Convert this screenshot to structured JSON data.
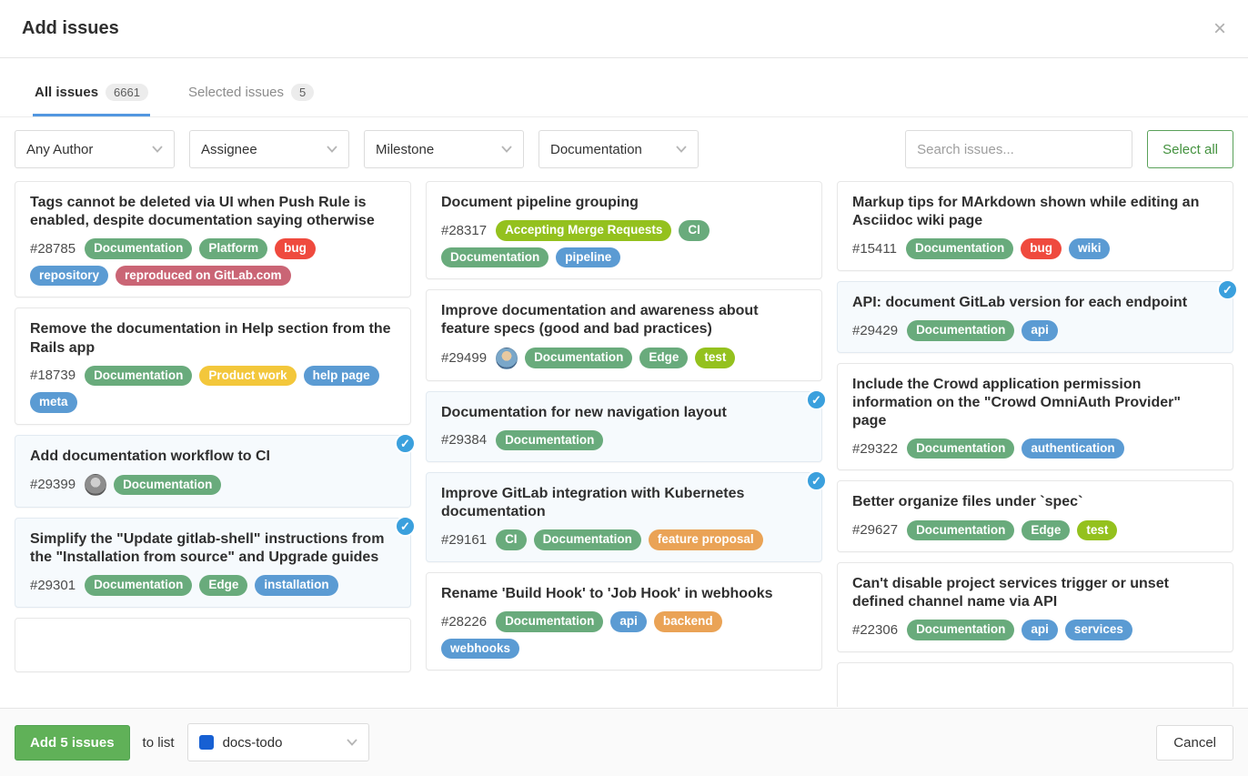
{
  "modal": {
    "title": "Add issues",
    "close_icon": "×"
  },
  "tabs": [
    {
      "label": "All issues",
      "count": "6661",
      "active": true
    },
    {
      "label": "Selected issues",
      "count": "5",
      "active": false
    }
  ],
  "filters": {
    "author": "Any Author",
    "assignee": "Assignee",
    "milestone": "Milestone",
    "label": "Documentation",
    "search_placeholder": "Search issues...",
    "select_all_label": "Select all"
  },
  "label_colors": {
    "green": "#69ab7c",
    "red": "#ef4a3e",
    "blue": "#5b9bd3",
    "rose": "#ca6575",
    "yellow": "#f3c73b",
    "lime": "#94c11e",
    "orange": "#eaa356"
  },
  "columns": [
    [
      {
        "title": "Tags cannot be deleted via UI when Push Rule is enabled, despite documentation saying otherwise",
        "id": "#28785",
        "selected": false,
        "labels": [
          {
            "text": "Documentation",
            "color": "green"
          },
          {
            "text": "Platform",
            "color": "green"
          },
          {
            "text": "bug",
            "color": "red"
          },
          {
            "text": "repository",
            "color": "blue"
          },
          {
            "text": "reproduced on GitLab.com",
            "color": "rose"
          }
        ]
      },
      {
        "title": "Remove the documentation in Help section from the Rails app",
        "id": "#18739",
        "selected": false,
        "labels": [
          {
            "text": "Documentation",
            "color": "green"
          },
          {
            "text": "Product work",
            "color": "yellow"
          },
          {
            "text": "help page",
            "color": "blue"
          },
          {
            "text": "meta",
            "color": "blue"
          }
        ]
      },
      {
        "title": "Add documentation workflow to CI",
        "id": "#29399",
        "selected": true,
        "avatar": "gray-photo",
        "labels": [
          {
            "text": "Documentation",
            "color": "green"
          }
        ]
      },
      {
        "title": "Simplify the \"Update gitlab-shell\" instructions from the \"Installation from source\" and Upgrade guides",
        "id": "#29301",
        "selected": true,
        "labels": [
          {
            "text": "Documentation",
            "color": "green"
          },
          {
            "text": "Edge",
            "color": "green"
          },
          {
            "text": "installation",
            "color": "blue"
          }
        ]
      },
      {
        "partial": true
      }
    ],
    [
      {
        "title": "Document pipeline grouping",
        "id": "#28317",
        "selected": false,
        "labels": [
          {
            "text": "Accepting Merge Requests",
            "color": "lime"
          },
          {
            "text": "CI",
            "color": "green"
          },
          {
            "text": "Documentation",
            "color": "green"
          },
          {
            "text": "pipeline",
            "color": "blue"
          }
        ]
      },
      {
        "title": "Improve documentation and awareness about feature specs (good and bad practices)",
        "id": "#29499",
        "selected": false,
        "avatar": "color-photo",
        "labels": [
          {
            "text": "Documentation",
            "color": "green"
          },
          {
            "text": "Edge",
            "color": "green"
          },
          {
            "text": "test",
            "color": "lime"
          }
        ]
      },
      {
        "title": "Documentation for new navigation layout",
        "id": "#29384",
        "selected": true,
        "labels": [
          {
            "text": "Documentation",
            "color": "green"
          }
        ]
      },
      {
        "title": "Improve GitLab integration with Kubernetes documentation",
        "id": "#29161",
        "selected": true,
        "labels": [
          {
            "text": "CI",
            "color": "green"
          },
          {
            "text": "Documentation",
            "color": "green"
          },
          {
            "text": "feature proposal",
            "color": "orange"
          }
        ]
      },
      {
        "title": "Rename 'Build Hook' to 'Job Hook' in webhooks",
        "id": "#28226",
        "selected": false,
        "labels": [
          {
            "text": "Documentation",
            "color": "green"
          },
          {
            "text": "api",
            "color": "blue"
          },
          {
            "text": "backend",
            "color": "orange"
          },
          {
            "text": "webhooks",
            "color": "blue"
          }
        ]
      }
    ],
    [
      {
        "title": "Markup tips for MArkdown shown while editing an Asciidoc wiki page",
        "id": "#15411",
        "selected": false,
        "labels": [
          {
            "text": "Documentation",
            "color": "green"
          },
          {
            "text": "bug",
            "color": "red"
          },
          {
            "text": "wiki",
            "color": "blue"
          }
        ]
      },
      {
        "title": "API: document GitLab version for each endpoint",
        "id": "#29429",
        "selected": true,
        "labels": [
          {
            "text": "Documentation",
            "color": "green"
          },
          {
            "text": "api",
            "color": "blue"
          }
        ]
      },
      {
        "title": "Include the Crowd application permission information on the \"Crowd OmniAuth Provider\" page",
        "id": "#29322",
        "selected": false,
        "labels": [
          {
            "text": "Documentation",
            "color": "green"
          },
          {
            "text": "authentication",
            "color": "blue"
          }
        ]
      },
      {
        "title": "Better organize files under `spec`",
        "id": "#29627",
        "selected": false,
        "labels": [
          {
            "text": "Documentation",
            "color": "green"
          },
          {
            "text": "Edge",
            "color": "green"
          },
          {
            "text": "test",
            "color": "lime"
          }
        ]
      },
      {
        "title": "Can't disable project services trigger or unset defined channel name via API",
        "id": "#22306",
        "selected": false,
        "labels": [
          {
            "text": "Documentation",
            "color": "green"
          },
          {
            "text": "api",
            "color": "blue"
          },
          {
            "text": "services",
            "color": "blue"
          }
        ]
      },
      {
        "partial": true
      }
    ]
  ],
  "footer": {
    "add_label": "Add 5 issues",
    "to_list_label": "to list",
    "list_name": "docs-todo",
    "cancel_label": "Cancel"
  }
}
